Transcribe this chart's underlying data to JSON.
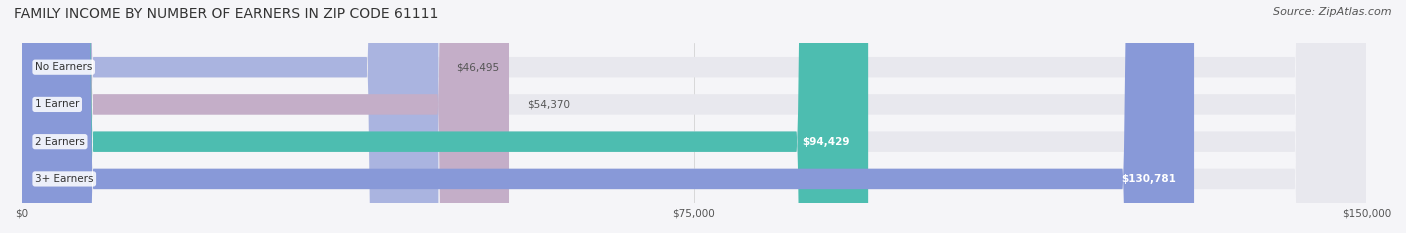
{
  "title": "FAMILY INCOME BY NUMBER OF EARNERS IN ZIP CODE 61111",
  "source": "Source: ZipAtlas.com",
  "categories": [
    "No Earners",
    "1 Earner",
    "2 Earners",
    "3+ Earners"
  ],
  "values": [
    46495,
    54370,
    94429,
    130781
  ],
  "bar_colors": [
    "#aab4e0",
    "#c4aec8",
    "#4dbdb0",
    "#8899d8"
  ],
  "bar_bg_color": "#e8e8ee",
  "label_values": [
    "$46,495",
    "$54,370",
    "$94,429",
    "$130,781"
  ],
  "xlim": [
    0,
    150000
  ],
  "xticks": [
    0,
    75000,
    150000
  ],
  "xtick_labels": [
    "$0",
    "$75,000",
    "$150,000"
  ],
  "background_color": "#f5f5f8",
  "title_fontsize": 10,
  "source_fontsize": 8,
  "bar_height": 0.55,
  "bar_label_inside_threshold": 75000
}
